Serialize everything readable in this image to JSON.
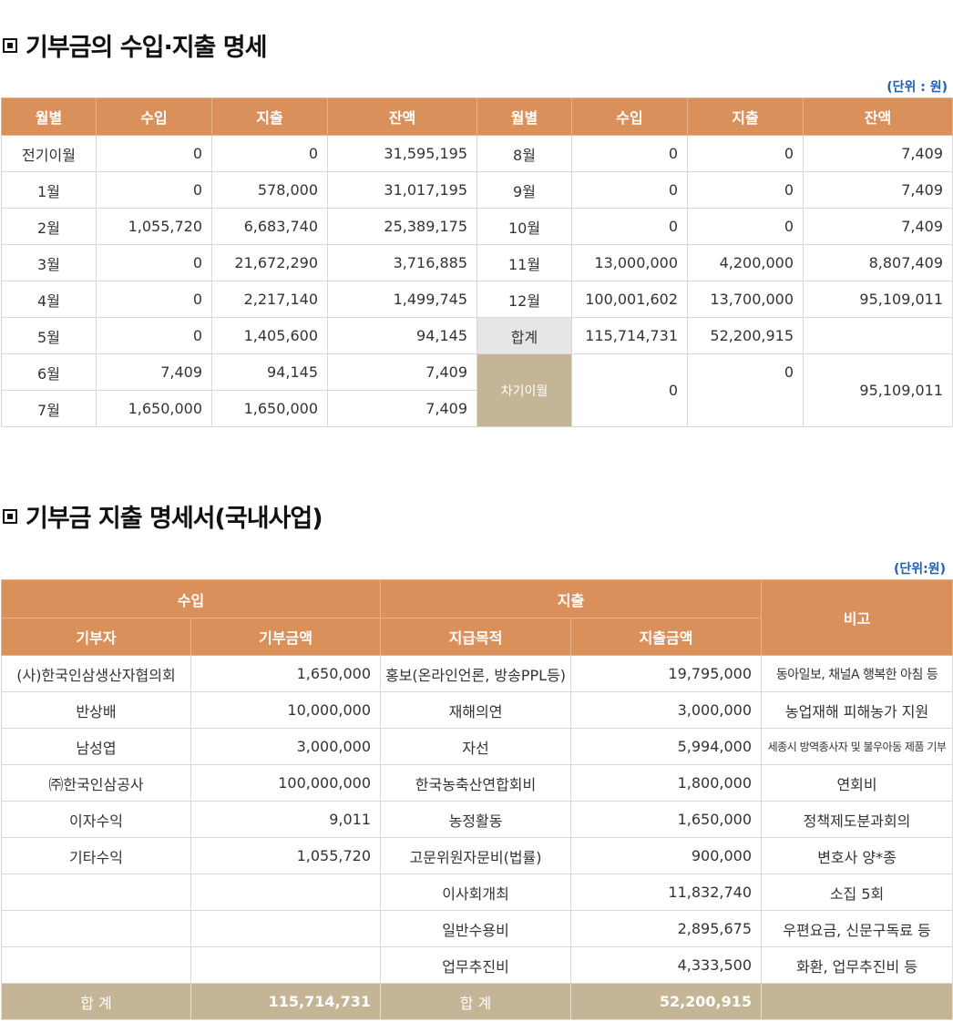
{
  "section1": {
    "title": "기부금의 수입·지출 명세",
    "unit": "(단위 : 원)",
    "headers": [
      "월별",
      "수입",
      "지출",
      "잔액",
      "월별",
      "수입",
      "지출",
      "잔액"
    ],
    "left_rows": [
      {
        "month": "전기이월",
        "income": "0",
        "expense": "0",
        "balance": "31,595,195"
      },
      {
        "month": "1월",
        "income": "0",
        "expense": "578,000",
        "balance": "31,017,195"
      },
      {
        "month": "2월",
        "income": "1,055,720",
        "expense": "6,683,740",
        "balance": "25,389,175"
      },
      {
        "month": "3월",
        "income": "0",
        "expense": "21,672,290",
        "balance": "3,716,885"
      },
      {
        "month": "4월",
        "income": "0",
        "expense": "2,217,140",
        "balance": "1,499,745"
      },
      {
        "month": "5월",
        "income": "0",
        "expense": "1,405,600",
        "balance": "94,145"
      },
      {
        "month": "6월",
        "income": "7,409",
        "expense": "94,145",
        "balance": "7,409"
      },
      {
        "month": "7월",
        "income": "1,650,000",
        "expense": "1,650,000",
        "balance": "7,409"
      }
    ],
    "right_rows": [
      {
        "month": "8월",
        "income": "0",
        "expense": "0",
        "balance": "7,409"
      },
      {
        "month": "9월",
        "income": "0",
        "expense": "0",
        "balance": "7,409"
      },
      {
        "month": "10월",
        "income": "0",
        "expense": "0",
        "balance": "7,409"
      },
      {
        "month": "11월",
        "income": "13,000,000",
        "expense": "4,200,000",
        "balance": "8,807,409"
      },
      {
        "month": "12월",
        "income": "100,001,602",
        "expense": "13,700,000",
        "balance": "95,109,011"
      }
    ],
    "total": {
      "label": "합계",
      "income": "115,714,731",
      "expense": "52,200,915"
    },
    "carry": {
      "label": "차기이월",
      "income": "0",
      "expense": "0",
      "balance": "95,109,011"
    }
  },
  "section2": {
    "title": "기부금 지출 명세서(국내사업)",
    "unit": "(단위:원)",
    "group_headers": {
      "income": "수입",
      "expense": "지출",
      "note": "비고"
    },
    "sub_headers": [
      "기부자",
      "기부금액",
      "지급목적",
      "지출금액"
    ],
    "rows": [
      {
        "donor": "(사)한국인삼생산자협의회",
        "amount": "1,650,000",
        "purpose": "홍보(온라인언론, 방송PPL등)",
        "spent": "19,795,000",
        "note": "동아일보, 채널A 행복한 아침 등"
      },
      {
        "donor": "반상배",
        "amount": "10,000,000",
        "purpose": "재해의연",
        "spent": "3,000,000",
        "note": "농업재해 피해농가 지원"
      },
      {
        "donor": "남성엽",
        "amount": "3,000,000",
        "purpose": "자선",
        "spent": "5,994,000",
        "note": "세종시 방역종사자 및 불우아동 제품 기부"
      },
      {
        "donor": "㈜한국인삼공사",
        "amount": "100,000,000",
        "purpose": "한국농축산연합회비",
        "spent": "1,800,000",
        "note": "연회비"
      },
      {
        "donor": "이자수익",
        "amount": "9,011",
        "purpose": "농정활동",
        "spent": "1,650,000",
        "note": "정책제도분과회의"
      },
      {
        "donor": "기타수익",
        "amount": "1,055,720",
        "purpose": "고문위원자문비(법률)",
        "spent": "900,000",
        "note": "변호사 양*종"
      },
      {
        "donor": "",
        "amount": "",
        "purpose": "이사회개최",
        "spent": "11,832,740",
        "note": "소집 5회"
      },
      {
        "donor": "",
        "amount": "",
        "purpose": "일반수용비",
        "spent": "2,895,675",
        "note": "우편요금, 신문구독료 등"
      },
      {
        "donor": "",
        "amount": "",
        "purpose": "업무추진비",
        "spent": "4,333,500",
        "note": "화환, 업무추진비 등"
      }
    ],
    "total": {
      "label1": "합 계",
      "amount": "115,714,731",
      "label2": "합 계",
      "spent": "52,200,915"
    }
  }
}
